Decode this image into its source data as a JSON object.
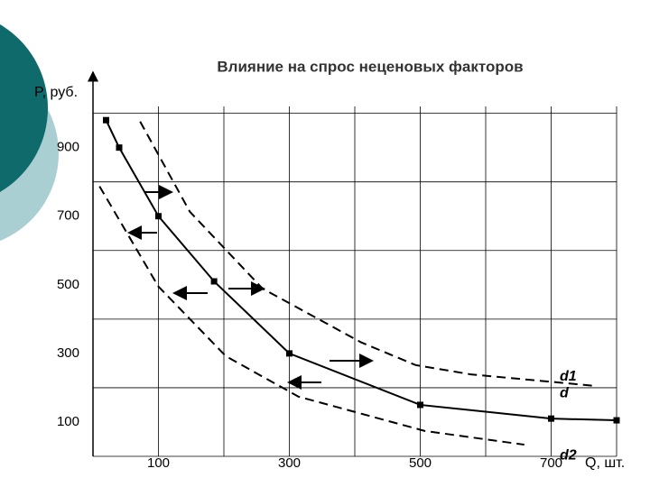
{
  "chart_data": {
    "type": "line",
    "title": "Влияние на спрос неценовых факторов",
    "y_label": "P, руб.",
    "x_label": "Q, шт.",
    "xlim": [
      0,
      800
    ],
    "ylim": [
      0,
      1020
    ],
    "xticks": [
      100,
      300,
      500,
      700
    ],
    "yticks": [
      100,
      300,
      500,
      700,
      900
    ],
    "xgrid": [
      0,
      100,
      200,
      300,
      400,
      500,
      600,
      700,
      800
    ],
    "ygrid": [
      0,
      200,
      400,
      600,
      800,
      1000
    ],
    "series": [
      {
        "name": "d",
        "color": "#000000",
        "dashed": false,
        "markers": true,
        "x": [
          20,
          40,
          100,
          185,
          300,
          500,
          700,
          800
        ],
        "values": [
          980,
          900,
          700,
          510,
          300,
          150,
          110,
          105
        ]
      },
      {
        "name": "d1",
        "color": "#000000",
        "dashed": true,
        "markers": false,
        "x": [
          72,
          148,
          259,
          410,
          493,
          577,
          769
        ],
        "values": [
          976,
          713,
          489,
          332,
          266,
          239,
          205
        ]
      },
      {
        "name": "d2",
        "color": "#000000",
        "dashed": true,
        "markers": false,
        "x": [
          10,
          100,
          203,
          314,
          507,
          659
        ],
        "values": [
          787,
          495,
          292,
          174,
          74,
          34
        ]
      }
    ]
  }
}
